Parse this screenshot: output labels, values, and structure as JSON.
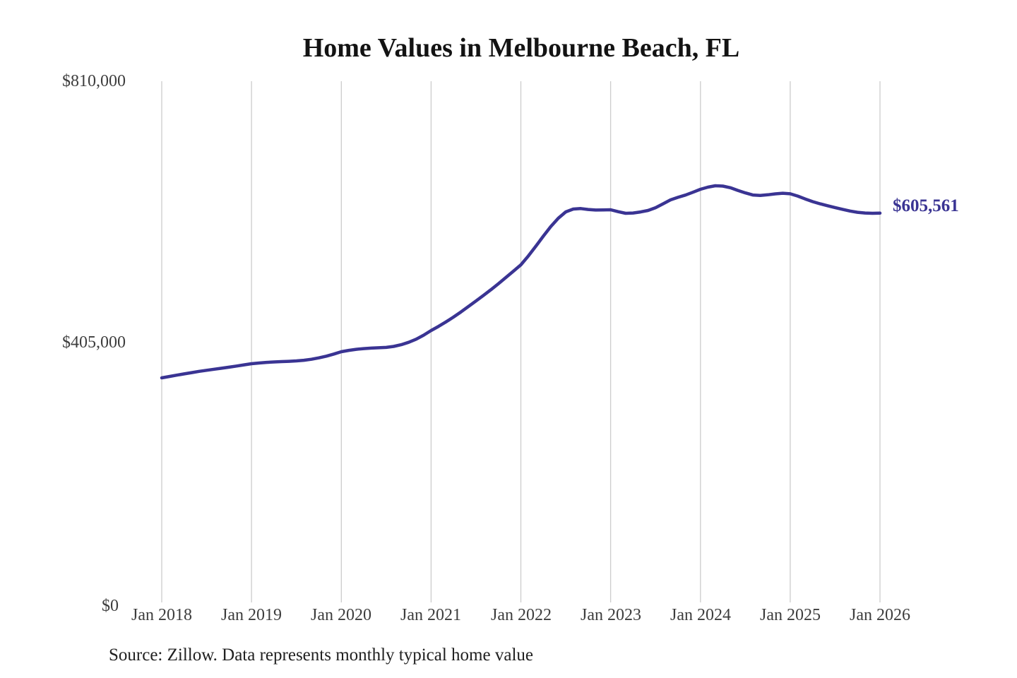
{
  "title": "Home Values in Melbourne Beach, FL",
  "source_note": "Source: Zillow. Data represents monthly typical home value",
  "end_label": "$605,561",
  "colors": {
    "line": "#3a3493",
    "grid": "#cccccc",
    "title_text": "#131313",
    "axis_text": "#3d3d3d",
    "source_text": "#212121"
  },
  "y_ticks": [
    "$0",
    "$405,000",
    "$810,000"
  ],
  "x_ticks": [
    "Jan 2018",
    "Jan 2019",
    "Jan 2020",
    "Jan 2021",
    "Jan 2022",
    "Jan 2023",
    "Jan 2024",
    "Jan 2025",
    "Jan 2026"
  ],
  "chart_data": {
    "type": "line",
    "title": "Home Values in Melbourne Beach, FL",
    "xlabel": "",
    "ylabel": "",
    "ylim": [
      0,
      810000
    ],
    "y_tick_values": [
      0,
      405000,
      810000
    ],
    "x_tick_labels": [
      "Jan 2018",
      "Jan 2019",
      "Jan 2020",
      "Jan 2021",
      "Jan 2022",
      "Jan 2023",
      "Jan 2024",
      "Jan 2025",
      "Jan 2026"
    ],
    "grid": "vertical",
    "legend": "none",
    "annotation": {
      "label": "$605,561",
      "x": "2026-01",
      "value": 605561
    },
    "x": [
      "2018-01",
      "2018-02",
      "2018-03",
      "2018-04",
      "2018-05",
      "2018-06",
      "2018-07",
      "2018-08",
      "2018-09",
      "2018-10",
      "2018-11",
      "2018-12",
      "2019-01",
      "2019-02",
      "2019-03",
      "2019-04",
      "2019-05",
      "2019-06",
      "2019-07",
      "2019-08",
      "2019-09",
      "2019-10",
      "2019-11",
      "2019-12",
      "2020-01",
      "2020-02",
      "2020-03",
      "2020-04",
      "2020-05",
      "2020-06",
      "2020-07",
      "2020-08",
      "2020-09",
      "2020-10",
      "2020-11",
      "2020-12",
      "2021-01",
      "2021-02",
      "2021-03",
      "2021-04",
      "2021-05",
      "2021-06",
      "2021-07",
      "2021-08",
      "2021-09",
      "2021-10",
      "2021-11",
      "2021-12",
      "2022-01",
      "2022-02",
      "2022-03",
      "2022-04",
      "2022-05",
      "2022-06",
      "2022-07",
      "2022-08",
      "2022-09",
      "2022-10",
      "2022-11",
      "2022-12",
      "2023-01",
      "2023-02",
      "2023-03",
      "2023-04",
      "2023-05",
      "2023-06",
      "2023-07",
      "2023-08",
      "2023-09",
      "2023-10",
      "2023-11",
      "2023-12",
      "2024-01",
      "2024-02",
      "2024-03",
      "2024-04",
      "2024-05",
      "2024-06",
      "2024-07",
      "2024-08",
      "2024-09",
      "2024-10",
      "2024-11",
      "2024-12",
      "2025-01",
      "2025-02",
      "2025-03",
      "2025-04",
      "2025-05",
      "2025-06",
      "2025-07",
      "2025-08",
      "2025-09",
      "2025-10",
      "2025-11",
      "2025-12",
      "2026-01"
    ],
    "values": [
      350300,
      352400,
      354400,
      356400,
      358400,
      360300,
      362000,
      363600,
      365200,
      366800,
      368600,
      370400,
      372200,
      373300,
      374200,
      374900,
      375400,
      375900,
      376500,
      377500,
      379100,
      381300,
      383900,
      387200,
      390800,
      392900,
      394500,
      395600,
      396300,
      396900,
      397500,
      399000,
      401600,
      405300,
      410100,
      416400,
      423600,
      430100,
      437100,
      444500,
      452500,
      460900,
      469400,
      478000,
      486900,
      496200,
      505800,
      515500,
      525400,
      539200,
      554300,
      569900,
      584700,
      597600,
      607500,
      611900,
      612600,
      611200,
      610300,
      610500,
      610800,
      607800,
      605300,
      605800,
      607400,
      609700,
      614000,
      620000,
      626100,
      630100,
      633500,
      637900,
      642500,
      645800,
      648000,
      647500,
      644900,
      640800,
      636900,
      633700,
      633000,
      634000,
      635400,
      636400,
      635500,
      632000,
      627500,
      623400,
      620000,
      617000,
      614200,
      611400,
      608800,
      606800,
      605700,
      605300,
      605561
    ]
  }
}
